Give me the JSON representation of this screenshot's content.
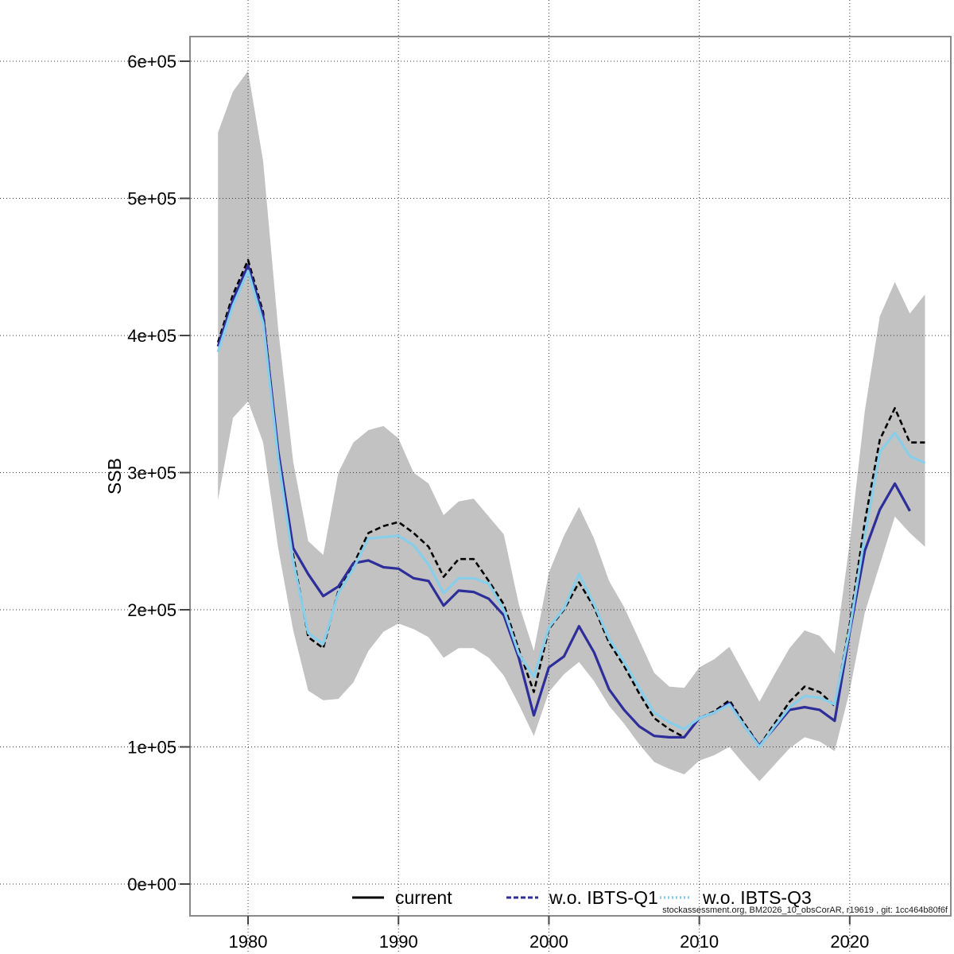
{
  "watermark": "stockassessment.org, BM2026_10_obsCorAR, r19619 , git: 1cc464b80f6f",
  "chart_data": {
    "type": "line",
    "title": "",
    "xlabel": "",
    "ylabel": "SSB",
    "xlim": [
      1976.14,
      2026.72
    ],
    "ylim": [
      -23188,
      617971
    ],
    "grid": {
      "style": "dotted",
      "color": "#3c3c3c",
      "full_bleed": true
    },
    "frame_color": "#8a8a8a",
    "x_ticks": [
      {
        "value": 1980,
        "label": "1980"
      },
      {
        "value": 1990,
        "label": "1990"
      },
      {
        "value": 2000,
        "label": "2000"
      },
      {
        "value": 2010,
        "label": "2010"
      },
      {
        "value": 2020,
        "label": "2020"
      }
    ],
    "y_ticks": [
      {
        "value": 0,
        "label": "0e+00"
      },
      {
        "value": 100000,
        "label": "1e+05"
      },
      {
        "value": 200000,
        "label": "2e+05"
      },
      {
        "value": 300000,
        "label": "3e+05"
      },
      {
        "value": 400000,
        "label": "4e+05"
      },
      {
        "value": 500000,
        "label": "5e+05"
      },
      {
        "value": 600000,
        "label": "6e+05"
      }
    ],
    "confidence_band": {
      "series": "current",
      "color": "#c2c2c2",
      "start_year": 1978,
      "lo": [
        280000,
        340000,
        352000,
        322000,
        245000,
        185000,
        141000,
        134000,
        135000,
        147000,
        170000,
        184000,
        190000,
        186000,
        180000,
        165000,
        172000,
        172000,
        165000,
        152000,
        131000,
        108000,
        140000,
        153000,
        162000,
        148000,
        130000,
        117000,
        102000,
        89000,
        84000,
        80000,
        90000,
        94000,
        100000,
        87000,
        75000,
        87000,
        99000,
        107000,
        104000,
        97000,
        141000,
        198000,
        233000,
        268000,
        256000,
        246000
      ],
      "hi": [
        548000,
        578000,
        593000,
        527000,
        405000,
        308000,
        250000,
        240000,
        300000,
        322000,
        331000,
        334000,
        325000,
        300000,
        292000,
        269000,
        279000,
        281000,
        268000,
        255000,
        204000,
        170000,
        227000,
        254000,
        275000,
        252000,
        221000,
        202000,
        178000,
        154000,
        144000,
        143000,
        158000,
        164000,
        173000,
        153000,
        133000,
        153000,
        172000,
        185000,
        181000,
        168000,
        249000,
        345000,
        414000,
        439000,
        416000,
        430000
      ]
    },
    "series": [
      {
        "name": "current",
        "color": "#000000",
        "plot_style": "dashed",
        "start_year": 1978,
        "values": [
          395000,
          430000,
          455000,
          417000,
          315000,
          240000,
          180000,
          172000,
          214000,
          233000,
          256000,
          261000,
          264000,
          256000,
          246000,
          224000,
          237000,
          237000,
          221000,
          204000,
          171000,
          140000,
          186000,
          200000,
          220000,
          202000,
          176000,
          159000,
          139000,
          121000,
          113000,
          107000,
          121000,
          126000,
          134000,
          117000,
          101000,
          117000,
          133000,
          144000,
          140000,
          130000,
          190000,
          264000,
          324000,
          347000,
          322000,
          322000
        ]
      },
      {
        "name": "w.o. IBTS-Q1",
        "color": "#2e2e9a",
        "plot_style": "solid",
        "start_year": 1978,
        "values": [
          392000,
          426000,
          451000,
          414000,
          316000,
          245000,
          226000,
          210000,
          217000,
          234000,
          236000,
          231000,
          230000,
          223000,
          221000,
          203000,
          214000,
          213000,
          208000,
          196000,
          165000,
          123000,
          158000,
          166000,
          188000,
          169000,
          142000,
          127000,
          115000,
          108000,
          107000,
          107000,
          121000,
          125000,
          132000,
          115000,
          101000,
          114000,
          127000,
          129000,
          127000,
          119000,
          184000,
          243000,
          273000,
          292000,
          272000
        ]
      },
      {
        "name": "w.o. IBTS-Q3",
        "color": "#87ceeb",
        "plot_style": "solid",
        "start_year": 1978,
        "values": [
          388000,
          422000,
          447000,
          409000,
          310000,
          235000,
          183000,
          175000,
          212000,
          230000,
          252000,
          253000,
          254000,
          247000,
          233000,
          212000,
          223000,
          223000,
          219000,
          200000,
          168000,
          151000,
          187000,
          201000,
          226000,
          204000,
          179000,
          162000,
          143000,
          125000,
          118000,
          113000,
          121000,
          125000,
          131000,
          115000,
          100000,
          115000,
          129000,
          137000,
          136000,
          131000,
          186000,
          254000,
          315000,
          329000,
          312000,
          307000
        ]
      }
    ],
    "legend": {
      "position": "bottom-center-inside",
      "items": [
        {
          "label": "current",
          "color": "#000000",
          "sample_style": "solid"
        },
        {
          "label": "w.o. IBTS-Q1",
          "color": "#2e2e9a",
          "sample_style": "dashed"
        },
        {
          "label": "w.o. IBTS-Q3",
          "color": "#87ceeb",
          "sample_style": "dotted"
        }
      ]
    }
  }
}
